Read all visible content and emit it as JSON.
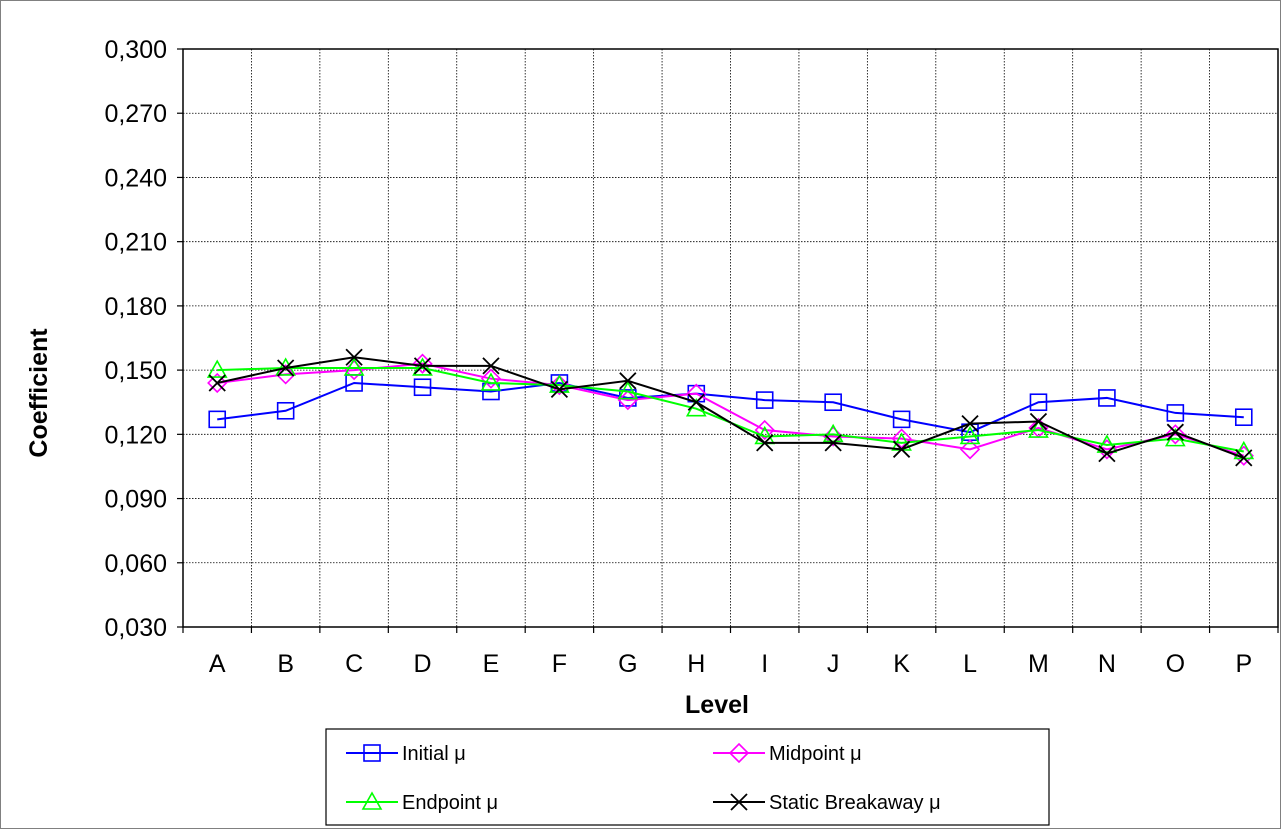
{
  "chart_data": {
    "type": "line",
    "title": "",
    "xlabel": "Level",
    "ylabel": "Coefficient",
    "categories": [
      "A",
      "B",
      "C",
      "D",
      "E",
      "F",
      "G",
      "H",
      "I",
      "J",
      "K",
      "L",
      "M",
      "N",
      "O",
      "P"
    ],
    "ylim": [
      0.03,
      0.3
    ],
    "yticks": [
      "0,030",
      "0,060",
      "0,090",
      "0,120",
      "0,150",
      "0,180",
      "0,210",
      "0,240",
      "0,270",
      "0,300"
    ],
    "grid": true,
    "legend_position": "bottom",
    "series": [
      {
        "name": "Initial μ",
        "color": "#0000ff",
        "marker": "square",
        "values": [
          0.127,
          0.131,
          0.144,
          0.142,
          0.14,
          0.144,
          0.137,
          0.139,
          0.136,
          0.135,
          0.127,
          0.121,
          0.135,
          0.137,
          0.13,
          0.128
        ]
      },
      {
        "name": "Midpoint μ",
        "color": "#ff00ff",
        "marker": "diamond",
        "values": [
          0.144,
          0.148,
          0.15,
          0.153,
          0.146,
          0.143,
          0.136,
          0.139,
          0.122,
          0.119,
          0.118,
          0.113,
          0.123,
          0.113,
          0.12,
          0.11
        ]
      },
      {
        "name": "Endpoint μ",
        "color": "#00ff00",
        "marker": "triangle",
        "values": [
          0.15,
          0.151,
          0.151,
          0.151,
          0.144,
          0.143,
          0.14,
          0.132,
          0.119,
          0.12,
          0.116,
          0.119,
          0.122,
          0.115,
          0.118,
          0.112
        ]
      },
      {
        "name": "Static Breakaway μ",
        "color": "#000000",
        "marker": "x",
        "values": [
          0.144,
          0.151,
          0.156,
          0.152,
          0.152,
          0.141,
          0.145,
          0.135,
          0.116,
          0.116,
          0.113,
          0.125,
          0.126,
          0.111,
          0.121,
          0.109
        ]
      }
    ]
  }
}
